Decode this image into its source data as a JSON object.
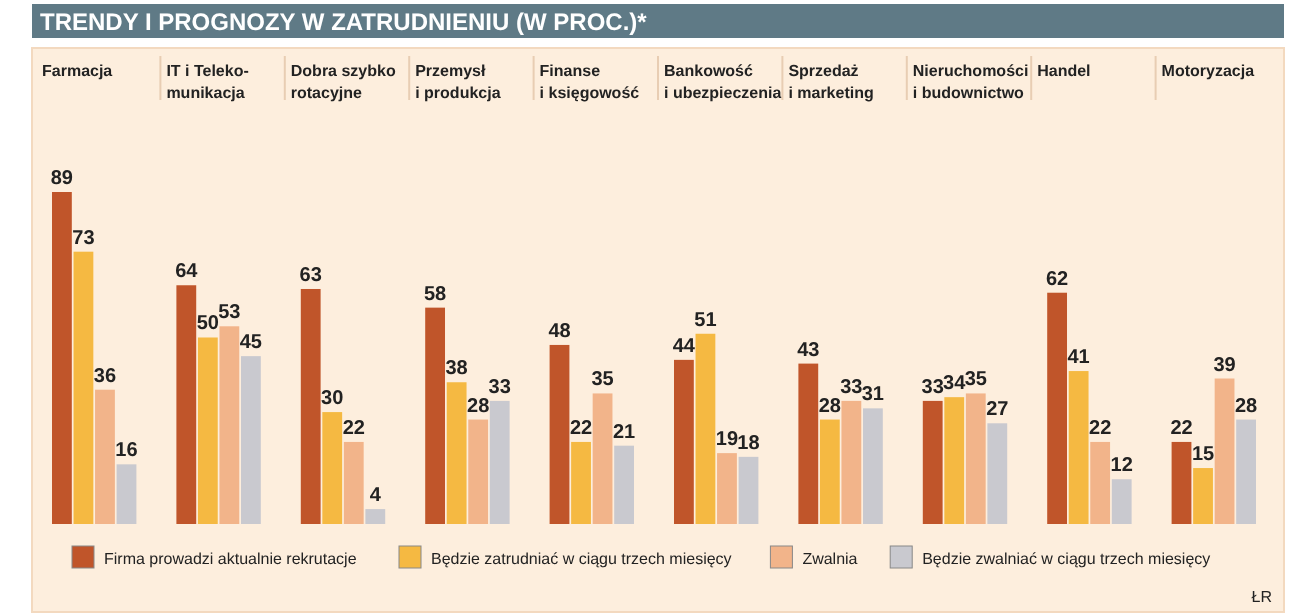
{
  "chart_data": {
    "type": "bar",
    "title": "TRENDY I PROGNOZY W ZATRUDNIENIU (W PROC.)*",
    "categories": [
      "Farmacja",
      "IT i Teleko-\nmunikacja",
      "Dobra szybko\nrotacyjne",
      "Przemysł\ni produkcja",
      "Finanse\ni księgowość",
      "Bankowość\ni ubezpieczenia",
      "Sprzedaż\ni marketing",
      "Nieruchomości\ni budownictwo",
      "Handel",
      "Motoryzacja"
    ],
    "series": [
      {
        "name": "Firma prowadzi aktualnie rekrutacje",
        "color": "#c0552a",
        "values": [
          89,
          64,
          63,
          58,
          48,
          44,
          43,
          33,
          62,
          22
        ]
      },
      {
        "name": "Będzie zatrudniać w ciągu trzech miesięcy",
        "color": "#f5b942",
        "values": [
          73,
          50,
          30,
          38,
          22,
          51,
          28,
          34,
          41,
          15
        ]
      },
      {
        "name": "Zwalnia",
        "color": "#f2b48a",
        "values": [
          36,
          53,
          22,
          28,
          35,
          19,
          33,
          35,
          22,
          39
        ]
      },
      {
        "name": "Będzie zwalniać w ciągu trzech miesięcy",
        "color": "#c9c9cf",
        "values": [
          16,
          45,
          4,
          33,
          21,
          18,
          31,
          27,
          12,
          28
        ]
      }
    ],
    "data_labels": true,
    "legend": "bottom",
    "annotations": [
      "ŁR"
    ]
  }
}
